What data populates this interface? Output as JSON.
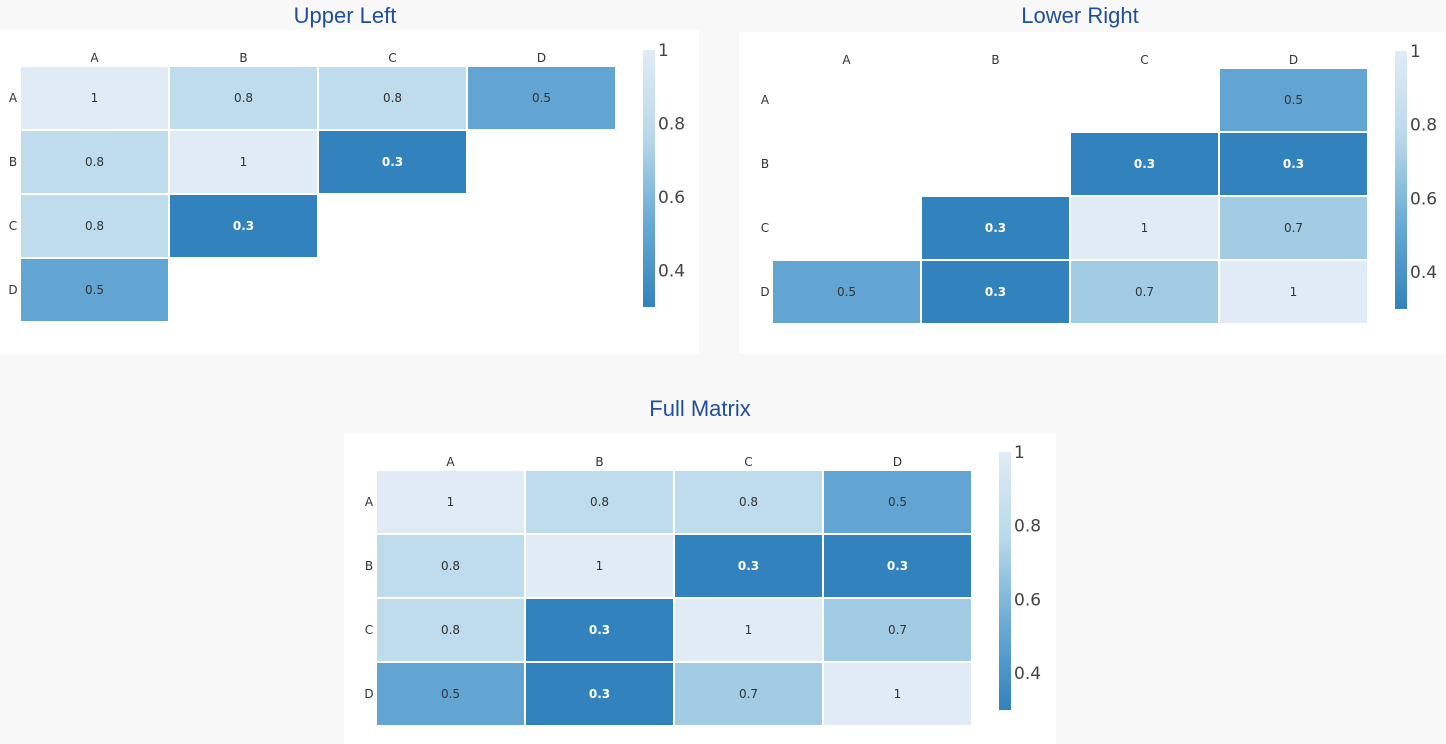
{
  "chart_data": [
    {
      "type": "heatmap",
      "title": "Upper Left",
      "x_labels": [
        "A",
        "B",
        "C",
        "D"
      ],
      "y_labels": [
        "A",
        "B",
        "C",
        "D"
      ],
      "values": [
        [
          1,
          0.8,
          0.8,
          0.5
        ],
        [
          0.8,
          1,
          0.3,
          null
        ],
        [
          0.8,
          0.3,
          null,
          null
        ],
        [
          0.5,
          null,
          null,
          null
        ]
      ],
      "colorbar": {
        "ticks": [
          "1",
          "0.8",
          "0.6",
          "0.4"
        ],
        "range": [
          0.3,
          1
        ]
      },
      "colorscale": [
        "#3282bd",
        "#6aabd5",
        "#b9d9ea",
        "#e0ebf6"
      ]
    },
    {
      "type": "heatmap",
      "title": "Lower Right",
      "x_labels": [
        "A",
        "B",
        "C",
        "D"
      ],
      "y_labels": [
        "A",
        "B",
        "C",
        "D"
      ],
      "values": [
        [
          null,
          null,
          null,
          0.5
        ],
        [
          null,
          null,
          0.3,
          0.3
        ],
        [
          null,
          0.3,
          1,
          0.7
        ],
        [
          0.5,
          0.3,
          0.7,
          1
        ]
      ],
      "colorbar": {
        "ticks": [
          "1",
          "0.8",
          "0.6",
          "0.4"
        ],
        "range": [
          0.3,
          1
        ]
      },
      "colorscale": [
        "#3282bd",
        "#6aabd5",
        "#b9d9ea",
        "#e0ebf6"
      ]
    },
    {
      "type": "heatmap",
      "title": "Full Matrix",
      "x_labels": [
        "A",
        "B",
        "C",
        "D"
      ],
      "y_labels": [
        "A",
        "B",
        "C",
        "D"
      ],
      "values": [
        [
          1,
          0.8,
          0.8,
          0.5
        ],
        [
          0.8,
          1,
          0.3,
          0.3
        ],
        [
          0.8,
          0.3,
          1,
          0.7
        ],
        [
          0.5,
          0.3,
          0.7,
          1
        ]
      ],
      "colorbar": {
        "ticks": [
          "1",
          "0.8",
          "0.6",
          "0.4"
        ],
        "range": [
          0.3,
          1
        ]
      },
      "colorscale": [
        "#3282bd",
        "#6aabd5",
        "#b9d9ea",
        "#e0ebf6"
      ]
    }
  ]
}
